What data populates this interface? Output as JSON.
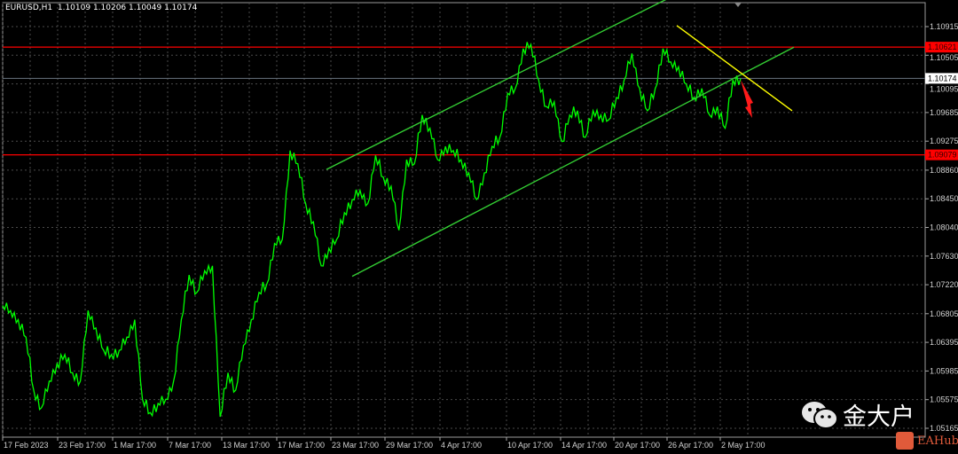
{
  "header": {
    "symbol": "EURUSD,H1",
    "ohlc": "1.10109 1.10206 1.10049 1.10174"
  },
  "colors": {
    "background": "#000000",
    "price_line": "#00ff00",
    "channel": "#33cc33",
    "resistance": "#ff0000",
    "downtrend": "#ffff00",
    "arrow": "#ff0000",
    "grid": "#4a4a4a"
  },
  "watermark": {
    "text": "金大户",
    "icon": "wechat-icon",
    "brand": "EAHub"
  },
  "chart_data": {
    "type": "line",
    "title": "EURUSD,H1",
    "ylim": [
      1.0495,
      1.1125
    ],
    "grid": true,
    "y_ticks": [
      "1.10915",
      "1.10505",
      "1.10095",
      "1.09685",
      "1.09275",
      "1.08860",
      "1.08450",
      "1.08040",
      "1.07630",
      "1.07220",
      "1.06805",
      "1.06395",
      "1.05985",
      "1.05575",
      "1.05165"
    ],
    "x_ticks": [
      "17 Feb 2023",
      "23 Feb 17:00",
      "1 Mar 17:00",
      "7 Mar 17:00",
      "13 Mar 17:00",
      "17 Mar 17:00",
      "23 Mar 17:00",
      "29 Mar 17:00",
      "4 Apr 17:00",
      "10 Apr 17:00",
      "14 Apr 17:00",
      "20 Apr 17:00",
      "26 Apr 17:00",
      "2 May 17:00"
    ],
    "horizontal_levels": [
      {
        "price": 1.10621,
        "label": "1.10621",
        "color": "#ff0000"
      },
      {
        "price": 1.09079,
        "label": "1.09079",
        "color": "#ff0000"
      }
    ],
    "current_price": {
      "price": 1.10174,
      "label": "1.10174"
    },
    "close": [
      1.0692,
      1.0685,
      1.0672,
      1.0647,
      1.0571,
      1.0546,
      1.0584,
      1.0609,
      1.0622,
      1.0596,
      1.0584,
      1.0685,
      1.066,
      1.0628,
      1.0622,
      1.0628,
      1.0647,
      1.0672,
      1.0558,
      1.0539,
      1.0552,
      1.0558,
      1.0584,
      1.0672,
      1.0736,
      1.0711,
      1.0742,
      1.0749,
      1.0533,
      1.0596,
      1.0571,
      1.0635,
      1.0672,
      1.0711,
      1.0723,
      1.0781,
      1.0787,
      1.0914,
      1.0895,
      1.0838,
      1.0812,
      1.0749,
      1.0774,
      1.0787,
      1.0825,
      1.0844,
      1.0857,
      1.0838,
      1.0907,
      1.0876,
      1.0863,
      1.08,
      1.0901,
      1.0895,
      1.0965,
      1.0946,
      1.0901,
      1.092,
      1.0914,
      1.0901,
      1.0882,
      1.0844,
      1.0882,
      1.092,
      1.0933,
      1.0996,
      1.1003,
      1.106,
      1.1066,
      1.1015,
      1.0977,
      1.0984,
      1.0927,
      1.0965,
      1.0971,
      1.0933,
      1.0971,
      1.0965,
      1.0958,
      1.099,
      1.1015,
      1.1053,
      1.1003,
      1.0971,
      1.1003,
      1.106,
      1.1041,
      1.1034,
      1.1009,
      1.099,
      1.1003,
      1.0965,
      1.0977,
      1.0946,
      1.1015,
      1.10174
    ],
    "trendlines": [
      {
        "name": "channel-upper",
        "from_price": 1.0887,
        "to_price": 1.1133,
        "color": "#33cc33"
      },
      {
        "name": "channel-lower",
        "from_price": 1.0734,
        "to_price": 1.1062,
        "color": "#33cc33"
      },
      {
        "name": "downtrend",
        "from_price": 1.1093,
        "to_price": 1.0971,
        "color": "#ffff00"
      }
    ]
  }
}
